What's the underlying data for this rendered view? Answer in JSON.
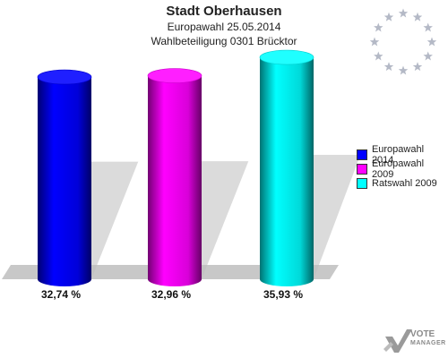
{
  "header": {
    "title": "Stadt Oberhausen",
    "subtitle1": "Europawahl 25.05.2014",
    "subtitle2": "Wahlbeteiligung 0301 Brücktor"
  },
  "colors": {
    "series1": "#0000ff",
    "series2": "#ff00ff",
    "series3": "#00ffff",
    "star": "#b4b9c6",
    "floor": "#c8c8c8"
  },
  "chart_data": {
    "type": "bar",
    "title": "Stadt Oberhausen",
    "categories": [
      "Europawahl 2014",
      "Europawahl 2009",
      "Ratswahl 2009"
    ],
    "values": [
      32.74,
      32.96,
      35.93
    ],
    "value_labels": [
      "32,74 %",
      "32,96 %",
      "35,93 %"
    ],
    "grid": false,
    "legend_position": "right"
  },
  "legend": {
    "items": [
      {
        "label": "Europawahl 2014",
        "color": "#0000ff"
      },
      {
        "label": "Europawahl 2009",
        "color": "#ff00ff"
      },
      {
        "label": "Ratswahl 2009",
        "color": "#00ffff"
      }
    ]
  },
  "logo": {
    "line1": "VOTE",
    "line2": "MANAGER"
  },
  "icons": {
    "eu_stars": "eu-stars-icon",
    "logo_mark": "vote-manager-logo"
  }
}
